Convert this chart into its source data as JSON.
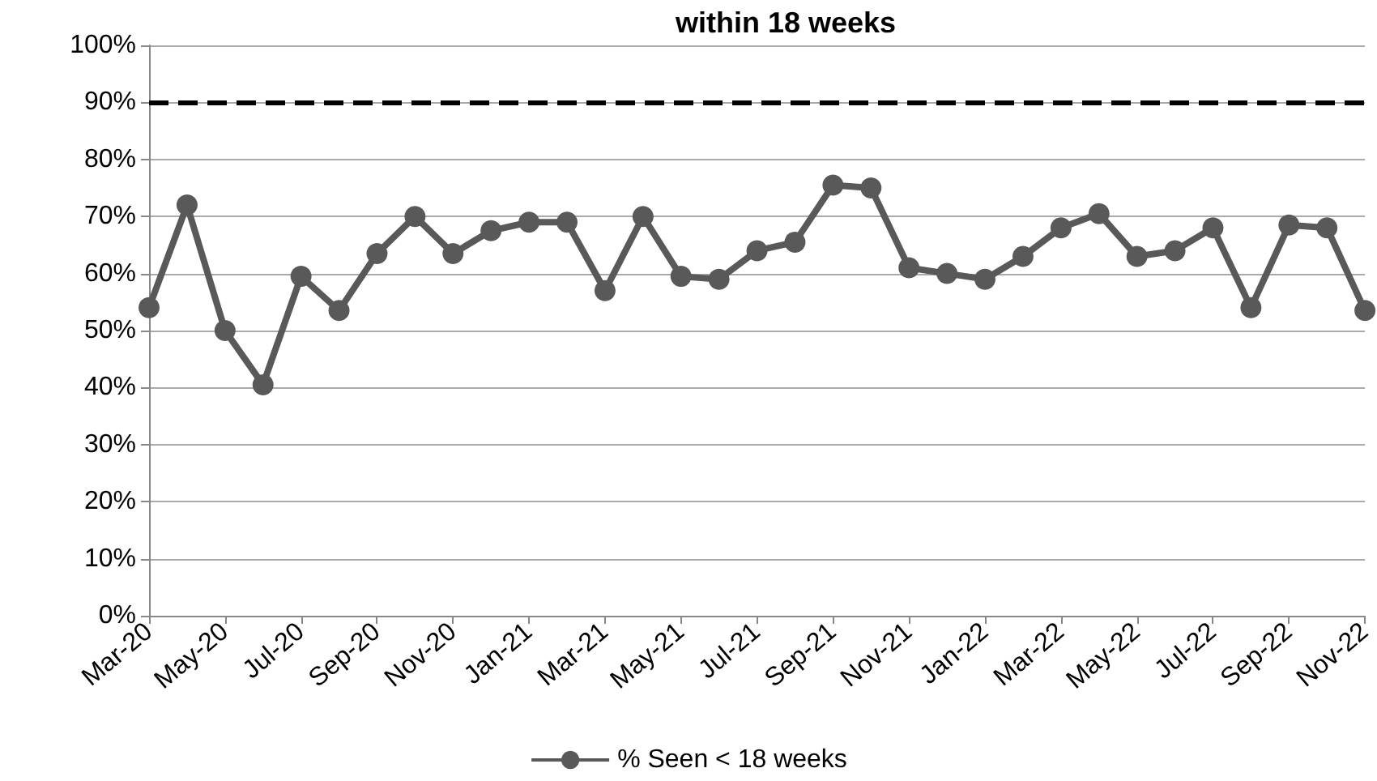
{
  "chart_data": {
    "type": "line",
    "title": "within 18 weeks",
    "categories": [
      "Mar-20",
      null,
      "May-20",
      null,
      "Jul-20",
      null,
      "Sep-20",
      null,
      "Nov-20",
      null,
      "Jan-21",
      null,
      "Mar-21",
      null,
      "May-21",
      null,
      "Jul-21",
      null,
      "Sep-21",
      null,
      "Nov-21",
      null,
      "Jan-22",
      null,
      "Mar-22",
      null,
      "May-22",
      null,
      "Jul-22",
      null,
      "Sep-22",
      null,
      "Nov-22"
    ],
    "series": [
      {
        "name": "% Seen < 18 weeks",
        "color": "#595959",
        "values": [
          54,
          72,
          50,
          40.5,
          59.5,
          53.5,
          63.5,
          70,
          63.5,
          67.5,
          69,
          69,
          57,
          70,
          59.5,
          59,
          64,
          65.5,
          75.5,
          75,
          61,
          60,
          59,
          63,
          68,
          70.5,
          63,
          64,
          68,
          54,
          68.5,
          68,
          53.5
        ]
      }
    ],
    "ylim": [
      0,
      100
    ],
    "yticks": [
      {
        "value": 0,
        "label": "0%"
      },
      {
        "value": 10,
        "label": "10%"
      },
      {
        "value": 20,
        "label": "20%"
      },
      {
        "value": 30,
        "label": "30%"
      },
      {
        "value": 40,
        "label": "40%"
      },
      {
        "value": 50,
        "label": "50%"
      },
      {
        "value": 60,
        "label": "60%"
      },
      {
        "value": 70,
        "label": "70%"
      },
      {
        "value": 80,
        "label": "80%"
      },
      {
        "value": 90,
        "label": "90%"
      },
      {
        "value": 100,
        "label": "100%"
      }
    ],
    "ref_lines": [
      {
        "axis": "y",
        "value": 90,
        "color": "#000000",
        "line_style": "dashed"
      }
    ],
    "grid": "y",
    "legend": "bottom",
    "marker": "circle",
    "line_style": "solid"
  }
}
